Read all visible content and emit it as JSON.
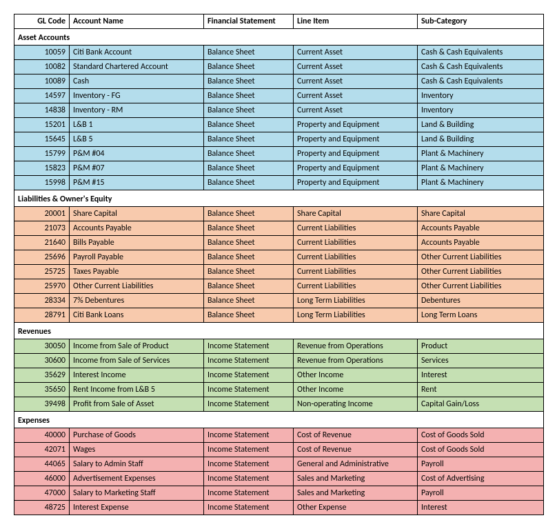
{
  "headers": {
    "code": "GL Code",
    "name": "Account Name",
    "fs": "Financial Statement",
    "line": "Line Item",
    "sub": "Sub-Category"
  },
  "colors": {
    "assets": "#b4ddec",
    "liabilities": "#f8caad",
    "revenues": "#c5e0b3",
    "expenses": "#f4b1b1",
    "border": "#000000",
    "text": "#000000"
  },
  "sections": [
    {
      "title": "Asset Accounts",
      "colorKey": "assets",
      "rows": [
        {
          "code": "10059",
          "name": "Citi Bank Account",
          "fs": "Balance Sheet",
          "line": "Current Asset",
          "sub": "Cash & Cash Equivalents"
        },
        {
          "code": "10082",
          "name": "Standard Chartered Account",
          "fs": "Balance Sheet",
          "line": "Current Asset",
          "sub": "Cash & Cash Equivalents"
        },
        {
          "code": "10089",
          "name": "Cash",
          "fs": "Balance Sheet",
          "line": "Current Asset",
          "sub": "Cash & Cash Equivalents"
        },
        {
          "code": "14597",
          "name": "Inventory - FG",
          "fs": "Balance Sheet",
          "line": "Current Asset",
          "sub": "Inventory"
        },
        {
          "code": "14838",
          "name": "Inventory - RM",
          "fs": "Balance Sheet",
          "line": "Current Asset",
          "sub": "Inventory"
        },
        {
          "code": "15201",
          "name": "L&B 1",
          "fs": "Balance Sheet",
          "line": "Property and Equipment",
          "sub": "Land & Building"
        },
        {
          "code": "15645",
          "name": "L&B 5",
          "fs": "Balance Sheet",
          "line": "Property and Equipment",
          "sub": "Land & Building"
        },
        {
          "code": "15799",
          "name": "P&M #04",
          "fs": "Balance Sheet",
          "line": "Property and Equipment",
          "sub": "Plant & Machinery"
        },
        {
          "code": "15823",
          "name": "P&M #07",
          "fs": "Balance Sheet",
          "line": "Property and Equipment",
          "sub": "Plant & Machinery"
        },
        {
          "code": "15998",
          "name": "P&M #15",
          "fs": "Balance Sheet",
          "line": "Property and Equipment",
          "sub": "Plant & Machinery"
        }
      ]
    },
    {
      "title": "Liabilities & Owner's Equity",
      "colorKey": "liabilities",
      "rows": [
        {
          "code": "20001",
          "name": "Share Capital",
          "fs": "Balance Sheet",
          "line": "Share Capital",
          "sub": "Share Capital"
        },
        {
          "code": "21073",
          "name": "Accounts Payable",
          "fs": "Balance Sheet",
          "line": "Current Liabilities",
          "sub": "Accounts Payable"
        },
        {
          "code": "21640",
          "name": "Bills Payable",
          "fs": "Balance Sheet",
          "line": "Current Liabilities",
          "sub": "Accounts Payable"
        },
        {
          "code": "25696",
          "name": "Payroll Payable",
          "fs": "Balance Sheet",
          "line": "Current Liabilities",
          "sub": "Other Current Liabilities"
        },
        {
          "code": "25725",
          "name": "Taxes Payable",
          "fs": "Balance Sheet",
          "line": "Current Liabilities",
          "sub": "Other Current Liabilities"
        },
        {
          "code": "25970",
          "name": "Other Current Liabilities",
          "fs": "Balance Sheet",
          "line": "Current Liabilities",
          "sub": "Other Current Liabilities"
        },
        {
          "code": "28334",
          "name": "7% Debentures",
          "fs": "Balance Sheet",
          "line": "Long Term Liabilities",
          "sub": "Debentures"
        },
        {
          "code": "28791",
          "name": "Citi Bank Loans",
          "fs": "Balance Sheet",
          "line": "Long Term Liabilities",
          "sub": "Long Term Loans"
        }
      ]
    },
    {
      "title": "Revenues",
      "colorKey": "revenues",
      "rows": [
        {
          "code": "30050",
          "name": "Income from Sale of Product",
          "fs": "Income Statement",
          "line": "Revenue from Operations",
          "sub": "Product"
        },
        {
          "code": "30600",
          "name": "Income from Sale of Services",
          "fs": "Income Statement",
          "line": "Revenue from Operations",
          "sub": "Services"
        },
        {
          "code": "35629",
          "name": "Interest Income",
          "fs": "Income Statement",
          "line": "Other Income",
          "sub": "Interest"
        },
        {
          "code": "35650",
          "name": "Rent Income from L&B 5",
          "fs": "Income Statement",
          "line": "Other Income",
          "sub": "Rent"
        },
        {
          "code": "39498",
          "name": "Profit from Sale of Asset",
          "fs": "Income Statement",
          "line": "Non-operating Income",
          "sub": "Capital Gain/Loss"
        }
      ]
    },
    {
      "title": "Expenses",
      "colorKey": "expenses",
      "rows": [
        {
          "code": "40000",
          "name": "Purchase of Goods",
          "fs": "Income Statement",
          "line": "Cost of Revenue",
          "sub": "Cost of Goods Sold"
        },
        {
          "code": "42071",
          "name": "Wages",
          "fs": "Income Statement",
          "line": "Cost of Revenue",
          "sub": "Cost of Goods Sold"
        },
        {
          "code": "44065",
          "name": "Salary to Admin Staff",
          "fs": "Income Statement",
          "line": "General and Administrative",
          "sub": "Payroll"
        },
        {
          "code": "46000",
          "name": "Advertisement Expenses",
          "fs": "Income Statement",
          "line": "Sales and Marketing",
          "sub": "Cost of Advertising"
        },
        {
          "code": "47000",
          "name": "Salary to Marketing Staff",
          "fs": "Income Statement",
          "line": "Sales and Marketing",
          "sub": "Payroll"
        },
        {
          "code": "48725",
          "name": "Interest Expense",
          "fs": "Income Statement",
          "line": "Other Expense",
          "sub": "Interest"
        }
      ]
    }
  ]
}
